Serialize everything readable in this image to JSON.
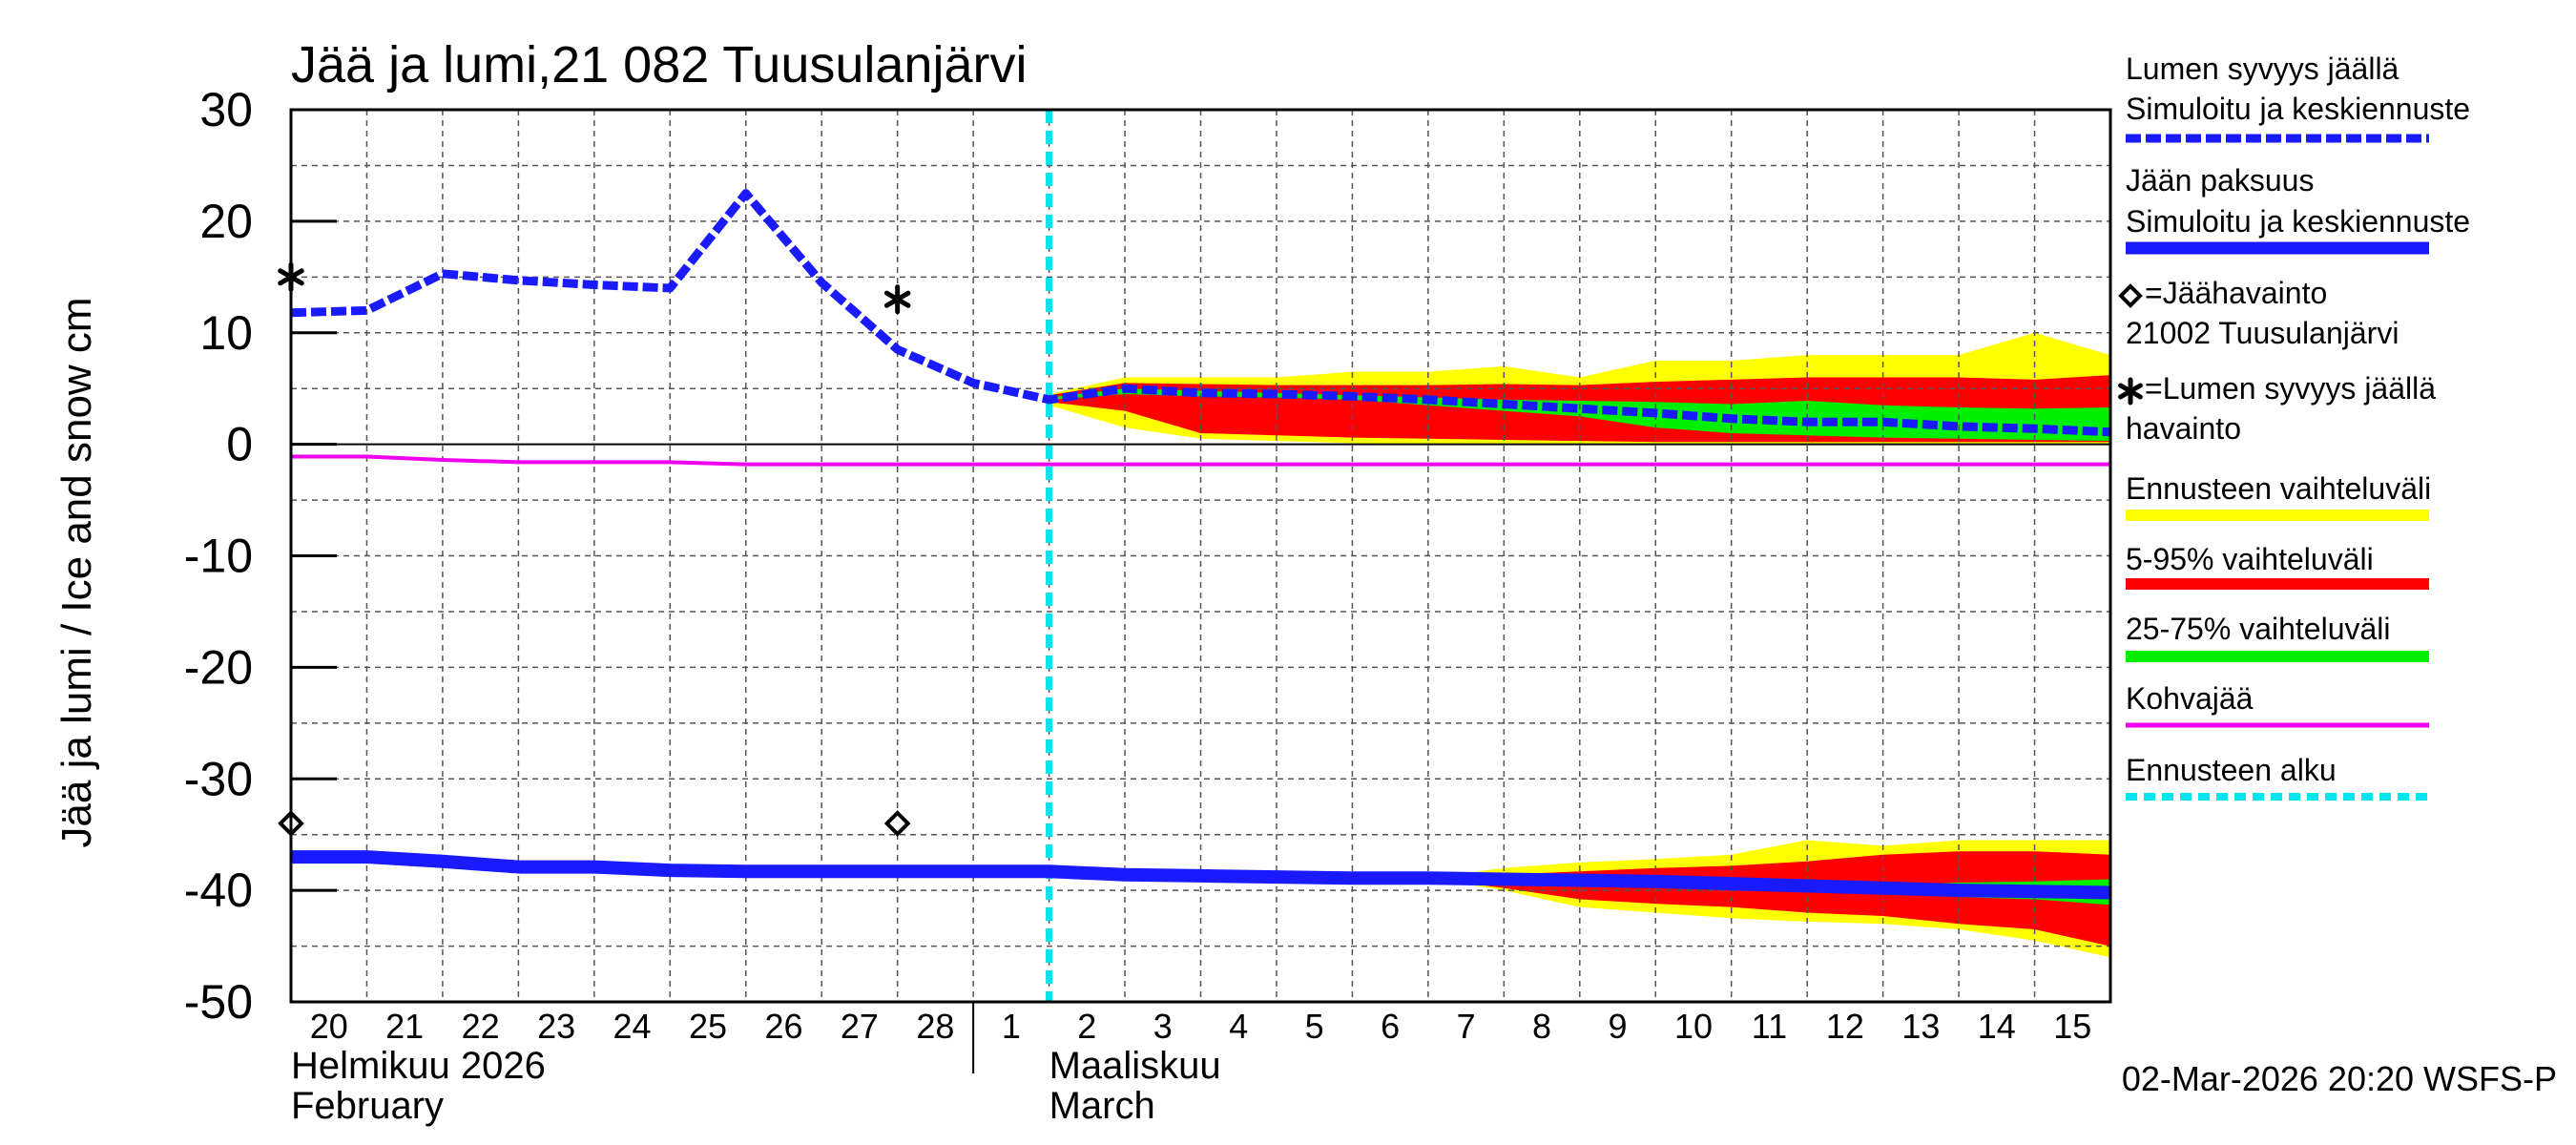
{
  "chart_data": {
    "type": "line",
    "title": "Jää ja lumi,21 082 Tuusulanjärvi",
    "ylabel": "Jää ja lumi / Ice and snow    cm",
    "ylim": [
      -50,
      30
    ],
    "yticks": [
      30,
      20,
      10,
      0,
      -10,
      -20,
      -30,
      -40,
      -50
    ],
    "grid": true,
    "x_days": [
      0,
      24
    ],
    "day_labels": [
      "20",
      "21",
      "22",
      "23",
      "24",
      "25",
      "26",
      "27",
      "28",
      "1",
      "2",
      "3",
      "4",
      "5",
      "6",
      "7",
      "8",
      "9",
      "10",
      "11",
      "12",
      "13",
      "14",
      "15"
    ],
    "month_labels": [
      {
        "fi": "Helmikuu  2026",
        "en": "February",
        "day": 0
      },
      {
        "fi": "Maaliskuu",
        "en": "March",
        "day": 10
      }
    ],
    "month_boundary_day": 9,
    "forecast_start_day": 10,
    "timestamp": "02-Mar-2026 20:20 WSFS-P",
    "colors": {
      "snow": "#1a1aff",
      "ice": "#1a1aff",
      "yellow": "#ffff00",
      "red": "#ff0000",
      "green": "#00ee00",
      "slush": "#ee00ee",
      "forecast": "#00e5ee",
      "black": "#000000"
    },
    "snow_depth_simulated": {
      "name": "Lumen syvyys jäällä",
      "x": [
        0,
        1,
        2,
        3,
        4,
        5,
        6,
        7,
        8,
        9,
        10,
        11,
        12,
        13,
        14,
        15,
        16,
        17,
        18,
        19,
        20,
        21,
        22,
        23,
        24
      ],
      "y": [
        11.8,
        12.0,
        15.3,
        14.7,
        14.3,
        14.0,
        22.5,
        14.5,
        8.5,
        5.5,
        4.0,
        5.0,
        4.6,
        4.5,
        4.3,
        4.0,
        3.6,
        3.2,
        2.8,
        2.3,
        2.0,
        2.0,
        1.6,
        1.4,
        1.1
      ]
    },
    "ice_thickness_simulated": {
      "name": "Jään paksuus",
      "x": [
        0,
        1,
        2,
        3,
        4,
        5,
        6,
        7,
        8,
        9,
        10,
        11,
        12,
        13,
        14,
        15,
        16,
        17,
        18,
        19,
        20,
        21,
        22,
        23,
        24
      ],
      "y": [
        -37.0,
        -37.0,
        -37.4,
        -37.9,
        -37.9,
        -38.2,
        -38.3,
        -38.3,
        -38.3,
        -38.3,
        -38.3,
        -38.6,
        -38.7,
        -38.8,
        -38.9,
        -38.9,
        -39.0,
        -39.1,
        -39.2,
        -39.4,
        -39.6,
        -39.8,
        -40.0,
        -40.1,
        -40.2
      ]
    },
    "slush_ice": {
      "name": "Kohvajää",
      "x": [
        0,
        1,
        2,
        3,
        4,
        5,
        6,
        7,
        8,
        9,
        10,
        12,
        14,
        16,
        18,
        20,
        22,
        24
      ],
      "y": [
        -1.1,
        -1.1,
        -1.4,
        -1.6,
        -1.6,
        -1.6,
        -1.8,
        -1.8,
        -1.8,
        -1.8,
        -1.8,
        -1.8,
        -1.8,
        -1.8,
        -1.8,
        -1.8,
        -1.8,
        -1.8
      ]
    },
    "snow_bands": {
      "x": [
        10,
        11,
        12,
        13,
        14,
        15,
        16,
        17,
        18,
        19,
        20,
        21,
        22,
        23,
        24
      ],
      "range_upper": [
        4.5,
        6.0,
        6.0,
        6.0,
        6.5,
        6.5,
        7.0,
        6.0,
        7.5,
        7.5,
        8.0,
        8.0,
        8.0,
        10.0,
        8.0
      ],
      "range_lower": [
        3.5,
        1.5,
        0.5,
        0.3,
        0.1,
        0.0,
        0.0,
        0.0,
        0.0,
        0.0,
        0.0,
        0.0,
        0.0,
        0.0,
        0.0
      ],
      "p95": [
        4.4,
        5.5,
        5.4,
        5.3,
        5.3,
        5.3,
        5.4,
        5.3,
        5.6,
        5.8,
        6.0,
        6.0,
        6.0,
        5.8,
        6.2
      ],
      "p5": [
        3.8,
        3.0,
        1.0,
        0.8,
        0.6,
        0.5,
        0.4,
        0.3,
        0.2,
        0.2,
        0.2,
        0.2,
        0.2,
        0.2,
        0.2
      ],
      "p75": [
        4.2,
        5.0,
        4.8,
        4.6,
        4.4,
        4.2,
        4.0,
        3.9,
        3.8,
        3.6,
        3.9,
        3.5,
        3.3,
        3.2,
        3.3
      ],
      "p25": [
        4.0,
        4.5,
        4.3,
        4.2,
        4.0,
        3.5,
        3.0,
        2.5,
        1.5,
        1.0,
        0.8,
        0.6,
        0.5,
        0.4,
        0.3
      ]
    },
    "ice_bands": {
      "x": [
        15,
        16,
        17,
        18,
        19,
        20,
        21,
        22,
        23,
        24
      ],
      "range_upper": [
        -38.9,
        -38.0,
        -37.5,
        -37.2,
        -36.8,
        -35.5,
        -36.0,
        -35.5,
        -35.5,
        -35.5
      ],
      "range_lower": [
        -38.9,
        -40.0,
        -41.5,
        -42.0,
        -42.5,
        -42.8,
        -43.0,
        -43.5,
        -44.5,
        -46.0
      ],
      "p95": [
        -38.9,
        -38.6,
        -38.3,
        -38.0,
        -37.8,
        -37.4,
        -36.8,
        -36.5,
        -36.5,
        -36.8
      ],
      "p5": [
        -38.9,
        -39.8,
        -40.8,
        -41.2,
        -41.5,
        -42.0,
        -42.3,
        -43.0,
        -43.5,
        -45.0
      ],
      "p75": [
        -38.9,
        -39.0,
        -39.1,
        -39.2,
        -39.3,
        -39.4,
        -39.5,
        -39.3,
        -39.2,
        -39.0
      ],
      "p25": [
        -38.9,
        -39.1,
        -39.3,
        -39.5,
        -39.7,
        -40.0,
        -40.3,
        -40.6,
        -40.8,
        -41.3
      ]
    },
    "ice_observations": {
      "x": [
        0,
        8
      ],
      "y": [
        -34,
        -34
      ]
    },
    "snow_observations": {
      "x": [
        0,
        8
      ],
      "y": [
        15,
        13
      ]
    },
    "legend": [
      {
        "key": "snow",
        "line1": "Lumen syvyys jäällä",
        "line2": "Simuloitu ja keskiennuste"
      },
      {
        "key": "ice",
        "line1": "Jään paksuus",
        "line2": "Simuloitu ja keskiennuste"
      },
      {
        "key": "ice_obs",
        "line1": "=Jäähavainto",
        "line2": "21002 Tuusulanjärvi"
      },
      {
        "key": "snow_obs",
        "line1": "=Lumen syvyys jäällä",
        "line2": "havainto"
      },
      {
        "key": "yellow",
        "line1": "Ennusteen vaihteluväli"
      },
      {
        "key": "red",
        "line1": "5-95% vaihteluväli"
      },
      {
        "key": "green",
        "line1": "25-75% vaihteluväli"
      },
      {
        "key": "slush",
        "line1": "Kohvajää"
      },
      {
        "key": "forecast",
        "line1": "Ennusteen alku"
      }
    ]
  }
}
